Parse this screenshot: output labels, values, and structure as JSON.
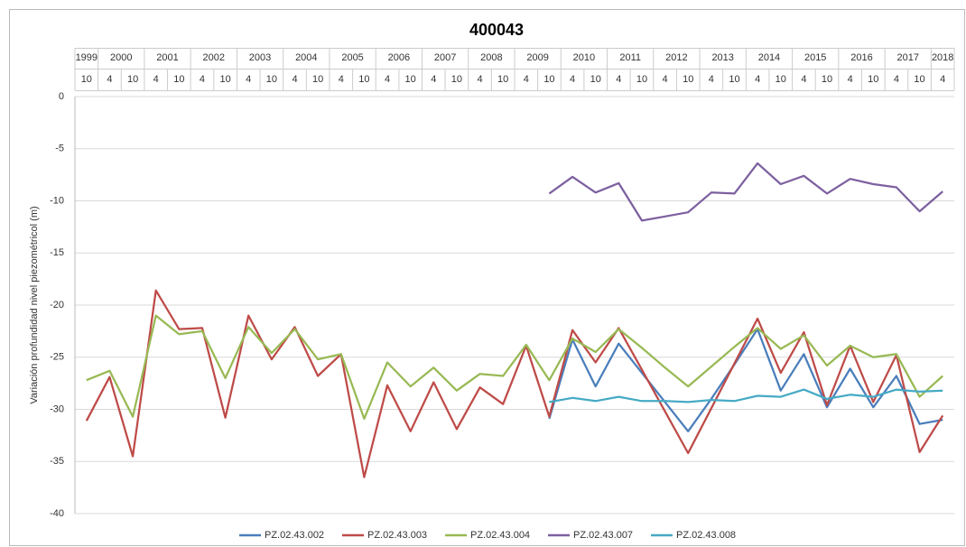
{
  "chart_data": {
    "type": "line",
    "title": "400043",
    "y_label": "Variación profundidad nivel piezométricol (m)",
    "years": [
      "1999",
      "2000",
      null,
      "2001",
      null,
      "2002",
      null,
      "2003",
      null,
      "2004",
      null,
      "2005",
      null,
      "2006",
      null,
      "2007",
      null,
      "2008",
      null,
      "2009",
      null,
      "2010",
      null,
      "2011",
      null,
      "2012",
      null,
      "2013",
      null,
      "2014",
      null,
      "2015",
      null,
      "2016",
      null,
      "2017",
      null,
      "2018"
    ],
    "categories": [
      "10",
      "4",
      "10",
      "4",
      "10",
      "4",
      "10",
      "4",
      "10",
      "4",
      "10",
      "4",
      "10",
      "4",
      "10",
      "4",
      "10",
      "4",
      "10",
      "4",
      "10",
      "4",
      "10",
      "4",
      "10",
      "4",
      "10",
      "4",
      "10",
      "4",
      "10",
      "4",
      "10",
      "4",
      "10",
      "4",
      "10",
      "4"
    ],
    "ylim": [
      -40,
      0
    ],
    "yticks": [
      0,
      -5,
      -10,
      -15,
      -20,
      -25,
      -30,
      -35,
      -40
    ],
    "grid": true,
    "legend": "bottom",
    "series": [
      {
        "name": "PZ.02.43.002",
        "color": "#4a7ebb",
        "values": [
          null,
          null,
          null,
          null,
          null,
          null,
          null,
          null,
          null,
          null,
          null,
          null,
          null,
          null,
          null,
          null,
          null,
          null,
          null,
          null,
          -30.9,
          -23.3,
          -27.8,
          -23.7,
          -26.5,
          -29.3,
          -32.1,
          -29.0,
          -25.7,
          -22.3,
          -28.2,
          -24.7,
          -29.8,
          -26.1,
          -29.8,
          -26.8,
          -31.4,
          -31.0
        ]
      },
      {
        "name": "PZ.02.43.003",
        "color": "#be4b48",
        "values": [
          -31.1,
          -26.9,
          -34.5,
          -18.6,
          -22.3,
          -22.2,
          -30.8,
          -21.0,
          -25.2,
          -22.1,
          -26.8,
          -24.7,
          -36.5,
          -27.7,
          -32.1,
          -27.4,
          -31.9,
          -27.9,
          -29.5,
          -23.9,
          -30.7,
          -22.4,
          -25.5,
          -22.2,
          -26.2,
          -30.2,
          -34.2,
          -29.9,
          -25.6,
          -21.3,
          -26.5,
          -22.6,
          -29.6,
          -23.9,
          -29.3,
          -24.8,
          -34.1,
          -30.6
        ]
      },
      {
        "name": "PZ.02.43.004",
        "color": "#98b954",
        "values": [
          -27.2,
          -26.3,
          -30.7,
          -21.0,
          -22.8,
          -22.5,
          -27.0,
          -22.1,
          -24.6,
          -22.3,
          -25.2,
          -24.7,
          -30.9,
          -25.5,
          -27.8,
          -26.0,
          -28.2,
          -26.6,
          -26.8,
          -23.8,
          -27.2,
          -23.2,
          -24.5,
          -22.3,
          -24.1,
          -26.0,
          -27.8,
          -25.9,
          -24.0,
          -22.2,
          -24.2,
          -22.9,
          -25.8,
          -23.9,
          -25.0,
          -24.7,
          -28.8,
          -26.8
        ]
      },
      {
        "name": "PZ.02.43.007",
        "color": "#7d60a0",
        "values": [
          null,
          null,
          null,
          null,
          null,
          null,
          null,
          null,
          null,
          null,
          null,
          null,
          null,
          null,
          null,
          null,
          null,
          null,
          null,
          null,
          -9.3,
          -7.7,
          -9.2,
          -8.3,
          -11.9,
          -11.5,
          -11.1,
          -9.2,
          -9.3,
          -6.4,
          -8.4,
          -7.6,
          -9.3,
          -7.9,
          -8.4,
          -8.7,
          -11.0,
          -9.1
        ]
      },
      {
        "name": "PZ.02.43.008",
        "color": "#46aac5",
        "values": [
          null,
          null,
          null,
          null,
          null,
          null,
          null,
          null,
          null,
          null,
          null,
          null,
          null,
          null,
          null,
          null,
          null,
          null,
          null,
          null,
          -29.3,
          -28.9,
          -29.2,
          -28.8,
          -29.2,
          -29.2,
          -29.3,
          -29.1,
          -29.2,
          -28.7,
          -28.8,
          -28.1,
          -29.0,
          -28.6,
          -28.8,
          -28.1,
          -28.3,
          -28.2
        ]
      }
    ]
  }
}
